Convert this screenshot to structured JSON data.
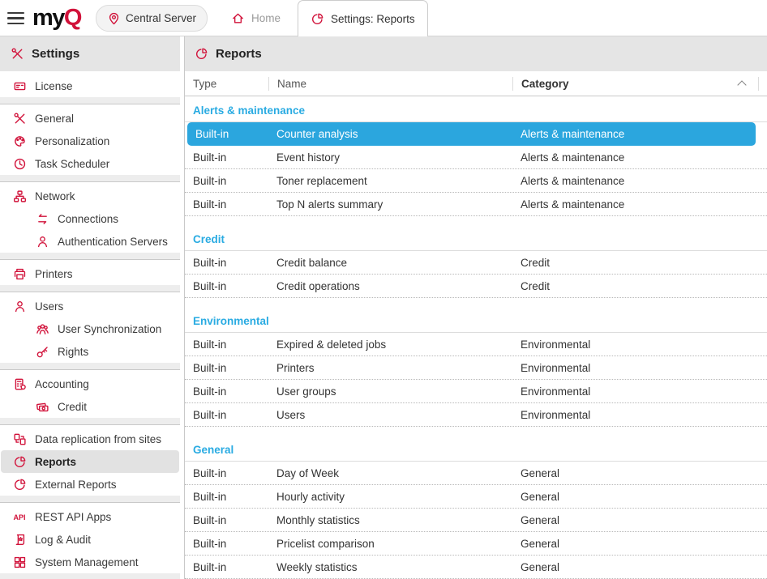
{
  "topbar": {
    "menu_icon": "menu-icon",
    "logo": {
      "part_dark": "my",
      "part_red": "Q"
    },
    "server_button": {
      "label": "Central Server",
      "icon": "location-pin-icon"
    },
    "tabs": [
      {
        "label": "Home",
        "icon": "home-icon",
        "active": false
      },
      {
        "label": "Settings: Reports",
        "icon": "reports-icon",
        "active": true
      }
    ]
  },
  "sidebar": {
    "title": "Settings",
    "title_icon": "tools-icon",
    "items": [
      {
        "label": "License",
        "icon": "license-icon",
        "indent": 0,
        "selected": false,
        "sep_after": true
      },
      {
        "label": "General",
        "icon": "tools-icon",
        "indent": 0,
        "selected": false,
        "sep_after": false
      },
      {
        "label": "Personalization",
        "icon": "palette-icon",
        "indent": 0,
        "selected": false,
        "sep_after": false
      },
      {
        "label": "Task Scheduler",
        "icon": "clock-icon",
        "indent": 0,
        "selected": false,
        "sep_after": true
      },
      {
        "label": "Network",
        "icon": "network-icon",
        "indent": 0,
        "selected": false,
        "sep_after": false
      },
      {
        "label": "Connections",
        "icon": "arrows-icon",
        "indent": 1,
        "selected": false,
        "sep_after": false
      },
      {
        "label": "Authentication Servers",
        "icon": "person-icon",
        "indent": 1,
        "selected": false,
        "sep_after": true
      },
      {
        "label": "Printers",
        "icon": "printer-icon",
        "indent": 0,
        "selected": false,
        "sep_after": true
      },
      {
        "label": "Users",
        "icon": "person-icon",
        "indent": 0,
        "selected": false,
        "sep_after": false
      },
      {
        "label": "User Synchronization",
        "icon": "group-icon",
        "indent": 1,
        "selected": false,
        "sep_after": false
      },
      {
        "label": "Rights",
        "icon": "key-icon",
        "indent": 1,
        "selected": false,
        "sep_after": true
      },
      {
        "label": "Accounting",
        "icon": "calculator-icon",
        "indent": 0,
        "selected": false,
        "sep_after": false
      },
      {
        "label": "Credit",
        "icon": "banknotes-icon",
        "indent": 1,
        "selected": false,
        "sep_after": true
      },
      {
        "label": "Data replication from sites",
        "icon": "replication-icon",
        "indent": 0,
        "selected": false,
        "sep_after": false
      },
      {
        "label": "Reports",
        "icon": "reports-icon",
        "indent": 0,
        "selected": true,
        "sep_after": false
      },
      {
        "label": "External Reports",
        "icon": "reports-icon",
        "indent": 0,
        "selected": false,
        "sep_after": true
      },
      {
        "label": "REST API Apps",
        "icon": "api-icon",
        "indent": 0,
        "selected": false,
        "sep_after": false
      },
      {
        "label": "Log & Audit",
        "icon": "scroll-icon",
        "indent": 0,
        "selected": false,
        "sep_after": false
      },
      {
        "label": "System Management",
        "icon": "grid-icon",
        "indent": 0,
        "selected": false,
        "sep_after": true
      }
    ]
  },
  "main": {
    "title": "Reports",
    "title_icon": "reports-icon",
    "table": {
      "columns": [
        {
          "label": "Type",
          "bold": false
        },
        {
          "label": "Name",
          "bold": false
        },
        {
          "label": "Category",
          "bold": true,
          "sort": "asc"
        }
      ],
      "groups": [
        {
          "title": "Alerts & maintenance",
          "rows": [
            {
              "type": "Built-in",
              "name": "Counter analysis",
              "category": "Alerts & maintenance",
              "selected": true
            },
            {
              "type": "Built-in",
              "name": "Event history",
              "category": "Alerts & maintenance",
              "selected": false
            },
            {
              "type": "Built-in",
              "name": "Toner replacement",
              "category": "Alerts & maintenance",
              "selected": false
            },
            {
              "type": "Built-in",
              "name": "Top N alerts summary",
              "category": "Alerts & maintenance",
              "selected": false
            }
          ]
        },
        {
          "title": "Credit",
          "rows": [
            {
              "type": "Built-in",
              "name": "Credit balance",
              "category": "Credit",
              "selected": false
            },
            {
              "type": "Built-in",
              "name": "Credit operations",
              "category": "Credit",
              "selected": false
            }
          ]
        },
        {
          "title": "Environmental",
          "rows": [
            {
              "type": "Built-in",
              "name": "Expired & deleted jobs",
              "category": "Environmental",
              "selected": false
            },
            {
              "type": "Built-in",
              "name": "Printers",
              "category": "Environmental",
              "selected": false
            },
            {
              "type": "Built-in",
              "name": "User groups",
              "category": "Environmental",
              "selected": false
            },
            {
              "type": "Built-in",
              "name": "Users",
              "category": "Environmental",
              "selected": false
            }
          ]
        },
        {
          "title": "General",
          "rows": [
            {
              "type": "Built-in",
              "name": "Day of Week",
              "category": "General",
              "selected": false
            },
            {
              "type": "Built-in",
              "name": "Hourly activity",
              "category": "General",
              "selected": false
            },
            {
              "type": "Built-in",
              "name": "Monthly statistics",
              "category": "General",
              "selected": false
            },
            {
              "type": "Built-in",
              "name": "Pricelist comparison",
              "category": "General",
              "selected": false
            },
            {
              "type": "Built-in",
              "name": "Weekly statistics",
              "category": "General",
              "selected": false
            }
          ]
        }
      ]
    }
  },
  "colors": {
    "accent_red": "#d1123a",
    "selection_blue": "#2ba6de",
    "group_title_blue": "#29abe2",
    "header_band_gray": "#e5e5e5",
    "selected_sidebar_gray": "#e2e2e2"
  }
}
